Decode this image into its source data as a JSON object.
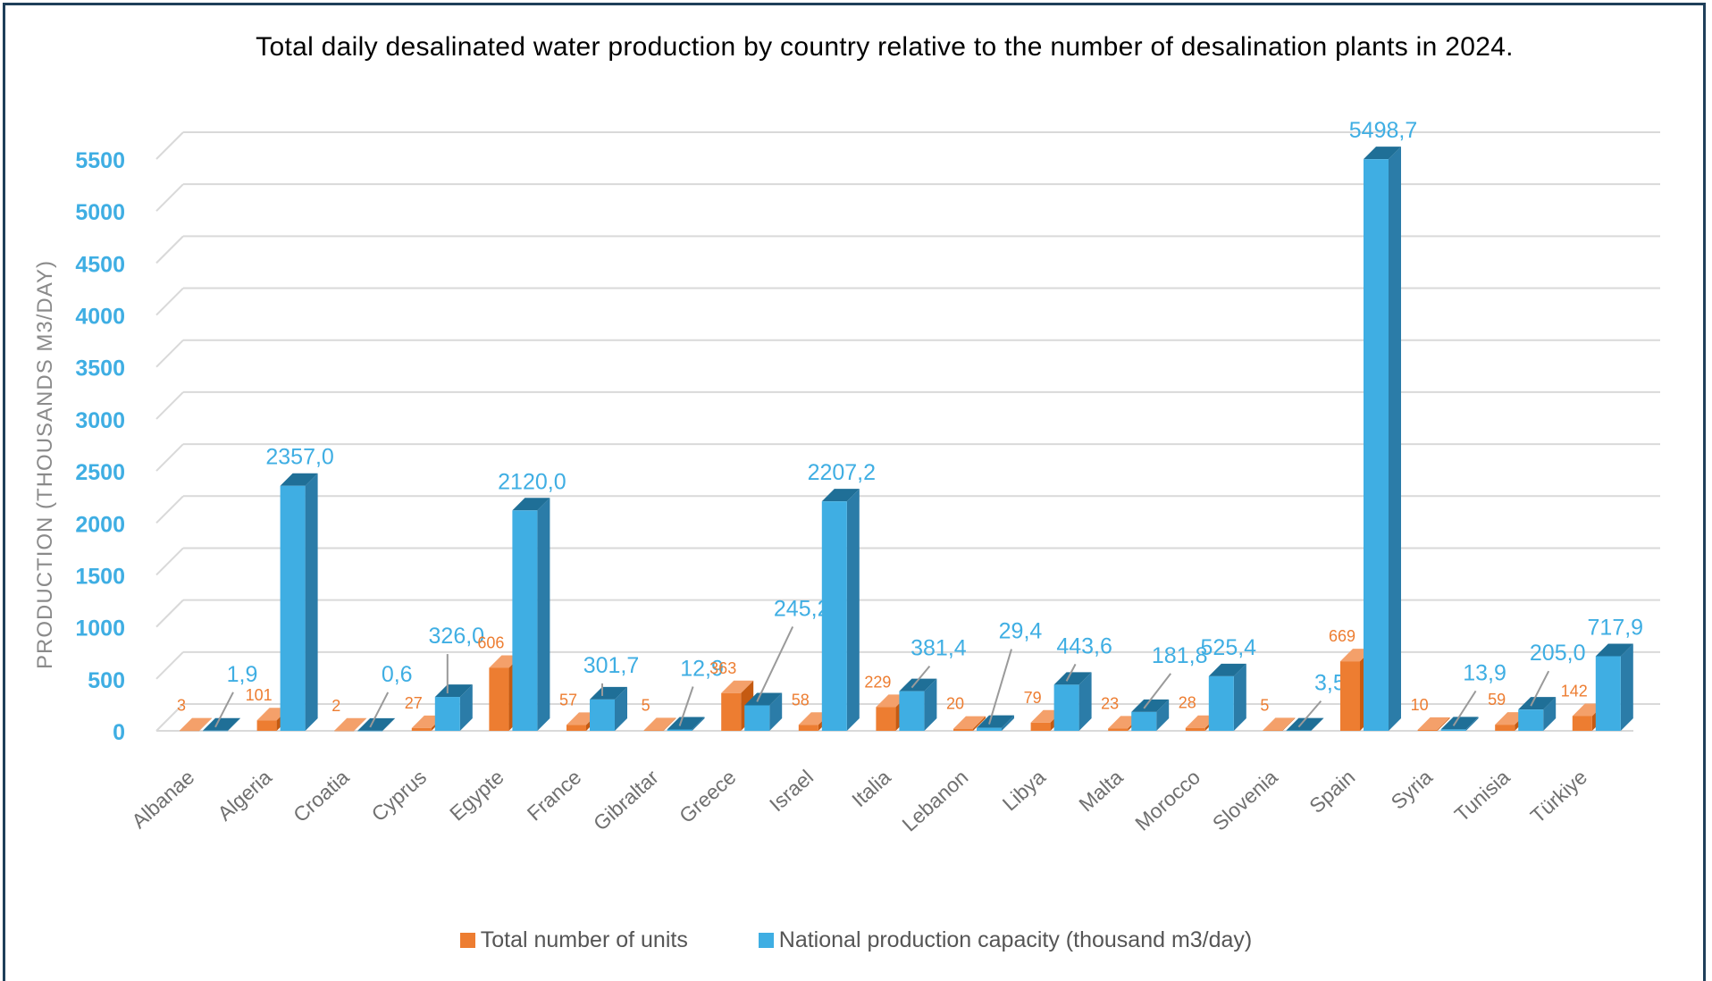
{
  "colors": {
    "units": "#ED7D31",
    "units_side": "#C55A11",
    "units_top": "#F4A06A",
    "capacity": "#3FAEE3",
    "capacity_side": "#2B7CA8",
    "capacity_top": "#1F6F97",
    "axis_text": "#3FAEE3",
    "units_label": "#ED7D31",
    "capacity_label": "#3FAEE3",
    "grid": "#d9d9d9",
    "frame": "#1f3f5a"
  },
  "chart_data": {
    "type": "bar",
    "title": "Total daily desalinated water production by country relative to the number of desalination plants in 2024.",
    "ylabel": "PRODUCTION (THOUSANDS M3/DAY)",
    "xlabel": "",
    "ylim": [
      0,
      5500
    ],
    "yticks": [
      "0",
      "500",
      "1000",
      "1500",
      "2000",
      "2500",
      "3000",
      "3500",
      "4000",
      "4500",
      "5000",
      "5500"
    ],
    "grid": true,
    "legend_position": "bottom",
    "categories": [
      "Albanae",
      "Algeria",
      "Croatia",
      "Cyprus",
      "Egypte",
      "France",
      "Gibraltar",
      "Greece",
      "Israel",
      "Italia",
      "Lebanon",
      "Libya",
      "Malta",
      "Morocco",
      "Slovenia",
      "Spain",
      "Syria",
      "Tunisia",
      "Türkiye"
    ],
    "series": [
      {
        "name": "Total number of units",
        "values": [
          3,
          101,
          2,
          27,
          606,
          57,
          5,
          363,
          58,
          229,
          20,
          79,
          23,
          28,
          5,
          669,
          10,
          59,
          142
        ],
        "labels": [
          "3",
          "101",
          "2",
          "27",
          "606",
          "57",
          "5",
          "363",
          "58",
          "229",
          "20",
          "79",
          "23",
          "28",
          "5",
          "669",
          "10",
          "59",
          "142"
        ]
      },
      {
        "name": "National production capacity (thousand m3/day)",
        "values": [
          1.9,
          2357.0,
          0.6,
          326.0,
          2120.0,
          301.7,
          12.9,
          245.2,
          2207.2,
          381.4,
          29.4,
          443.6,
          181.8,
          525.4,
          3.5,
          5498.7,
          13.9,
          205.0,
          717.9
        ],
        "labels": [
          "1,9",
          "2357,0",
          "0,6",
          "326,0",
          "2120,0",
          "301,7",
          "12,9",
          "245,2",
          "2207,2",
          "381,4",
          "29,4",
          "443,6",
          "181,8",
          "525,4",
          "3,5",
          "5498,7",
          "13,9",
          "205,0",
          "717,9"
        ]
      }
    ]
  }
}
